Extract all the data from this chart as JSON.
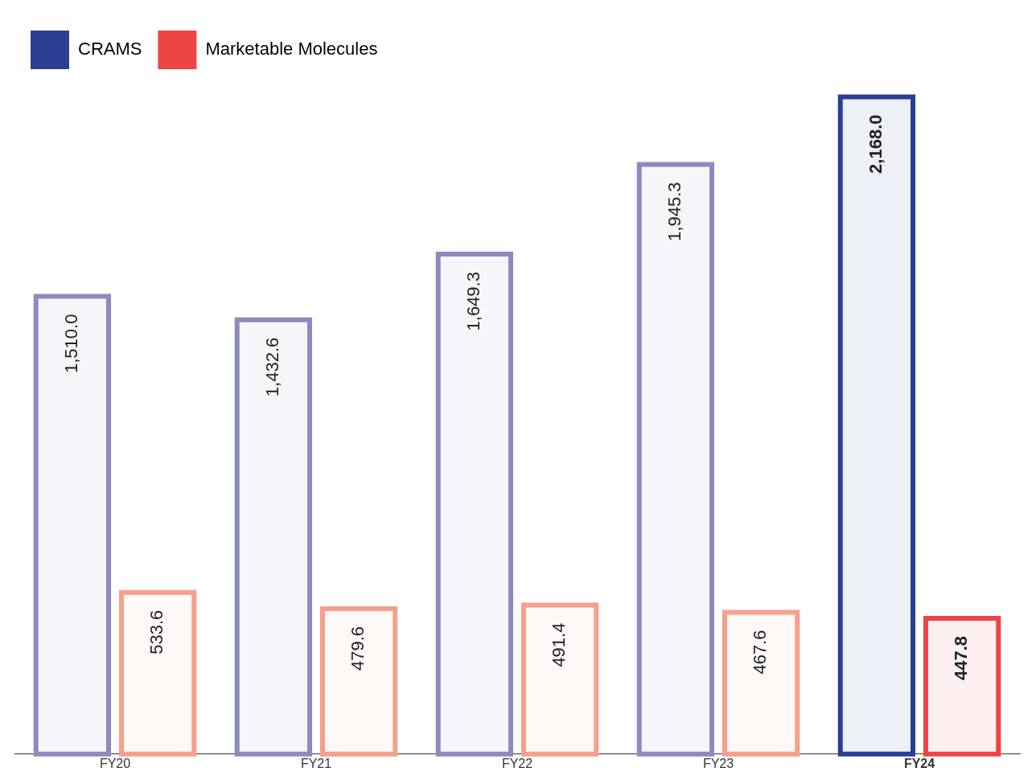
{
  "chart_data": {
    "type": "bar",
    "categories": [
      "FY20",
      "FY21",
      "FY22",
      "FY23",
      "FY24"
    ],
    "series": [
      {
        "name": "CRAMS",
        "color": "#283f94",
        "colors": [
          "#8b8bbf",
          "#8b8bbf",
          "#8b8bbf",
          "#8b8bbf",
          "#283f94"
        ],
        "values": [
          1510.0,
          1432.6,
          1649.3,
          1945.3,
          2168.0
        ],
        "value_labels": [
          "1,510.0",
          "1,432.6",
          "1,649.3",
          "1,945.3",
          "2,168.0"
        ]
      },
      {
        "name": "Marketable Molecules",
        "color": "#ef4444",
        "colors": [
          "#f5a08c",
          "#f5a08c",
          "#f5a08c",
          "#f5a08c",
          "#ef4444"
        ],
        "values": [
          533.6,
          479.6,
          491.4,
          467.6,
          447.8
        ],
        "value_labels": [
          "533.6",
          "479.6",
          "491.4",
          "467.6",
          "447.8"
        ]
      }
    ],
    "legend": "top",
    "grid": false
  }
}
